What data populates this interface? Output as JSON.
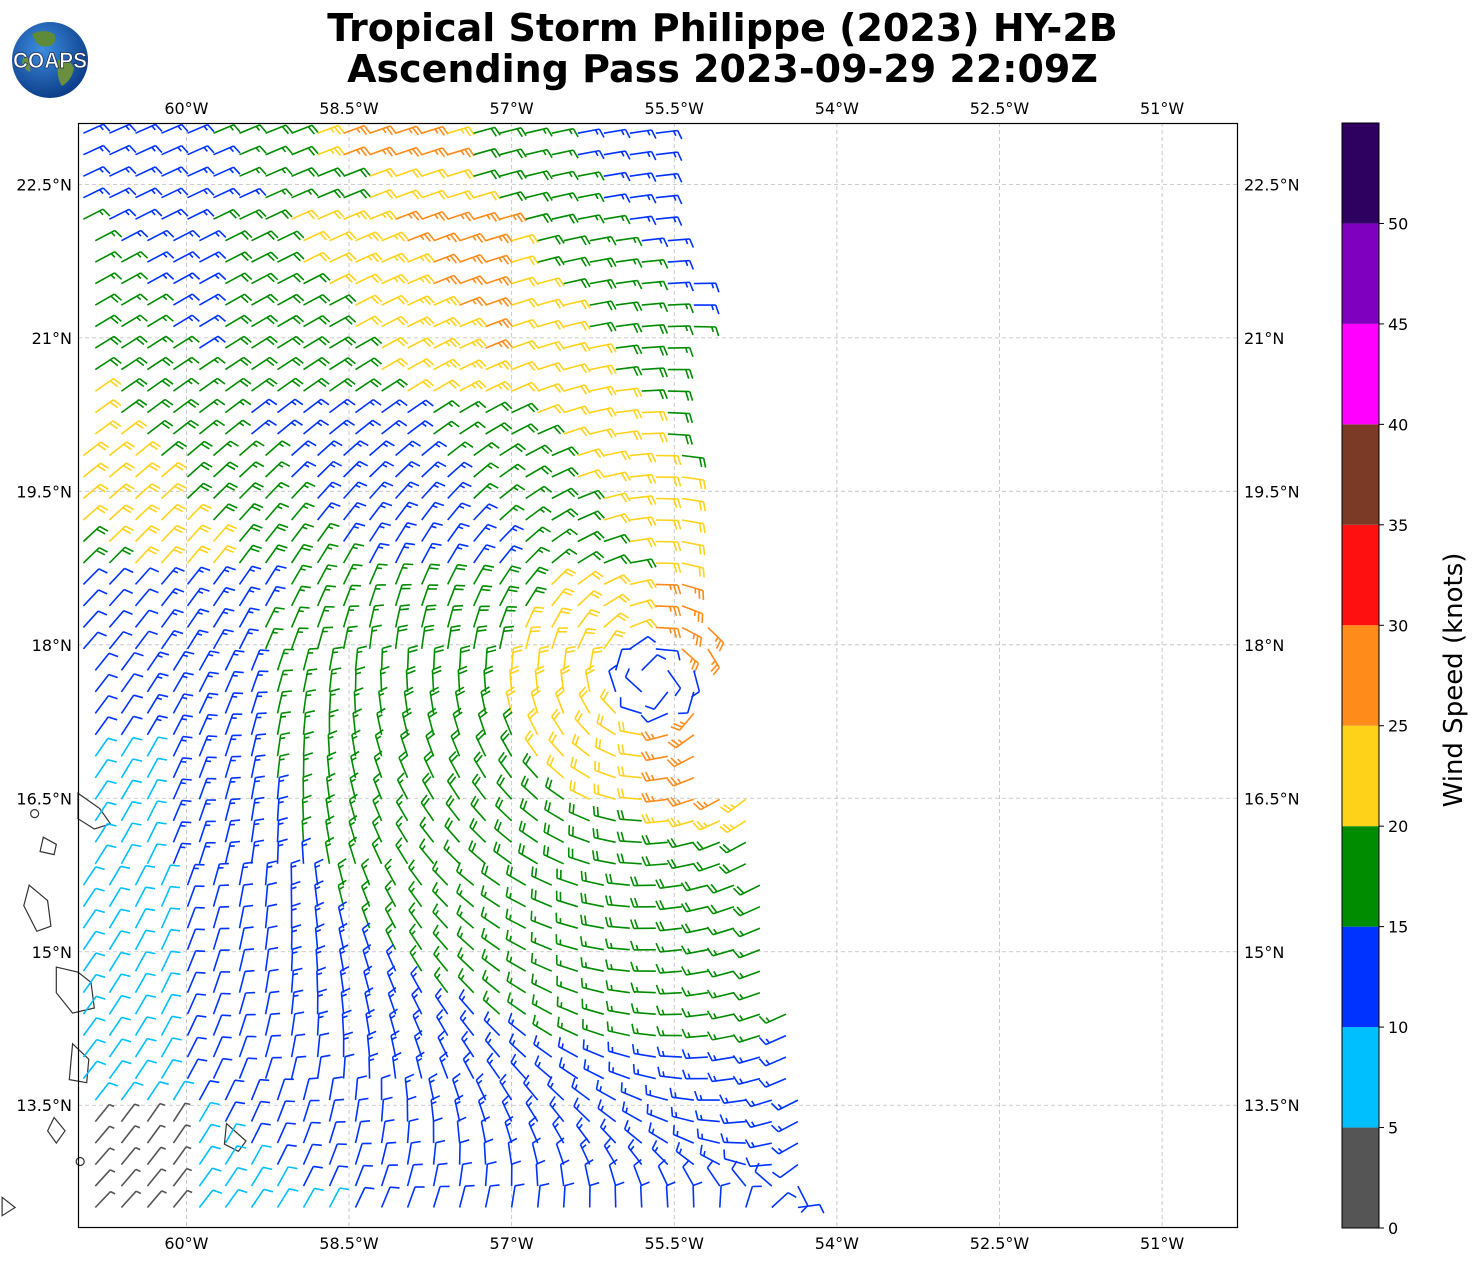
{
  "title": {
    "line1": "Tropical Storm Philippe (2023) HY-2B",
    "line2": "Ascending Pass 2023-09-29 22:09Z"
  },
  "logo": {
    "text": "COAPS",
    "icon": "globe-icon"
  },
  "map": {
    "lon_range": [
      -61.0,
      -50.3
    ],
    "lat_range": [
      12.3,
      23.1
    ],
    "lon_ticks": [
      "60°W",
      "58.5°W",
      "57°W",
      "55.5°W",
      "54°W",
      "52.5°W",
      "51°W"
    ],
    "lat_ticks": [
      "22.5°N",
      "21°N",
      "19.5°N",
      "18°N",
      "16.5°N",
      "15°N",
      "13.5°N"
    ],
    "grid": true,
    "storm_center": {
      "lon": -55.7,
      "lat": 17.65
    }
  },
  "colorbar": {
    "label": "Wind Speed (knots)",
    "ticks": [
      "0",
      "5",
      "10",
      "15",
      "20",
      "25",
      "30",
      "35",
      "40",
      "45",
      "50"
    ],
    "bins": [
      {
        "min": 0,
        "max": 5,
        "color": "#555555"
      },
      {
        "min": 5,
        "max": 10,
        "color": "#00bfff"
      },
      {
        "min": 10,
        "max": 15,
        "color": "#0033ff"
      },
      {
        "min": 15,
        "max": 20,
        "color": "#008c00"
      },
      {
        "min": 20,
        "max": 25,
        "color": "#ffd21a"
      },
      {
        "min": 25,
        "max": 30,
        "color": "#ff8c1a"
      },
      {
        "min": 30,
        "max": 35,
        "color": "#ff1010"
      },
      {
        "min": 35,
        "max": 40,
        "color": "#7a3a25"
      },
      {
        "min": 40,
        "max": 45,
        "color": "#ff00ff"
      },
      {
        "min": 45,
        "max": 50,
        "color": "#8000c0"
      },
      {
        "min": 50,
        "max": 55,
        "color": "#2e0060"
      }
    ]
  }
}
